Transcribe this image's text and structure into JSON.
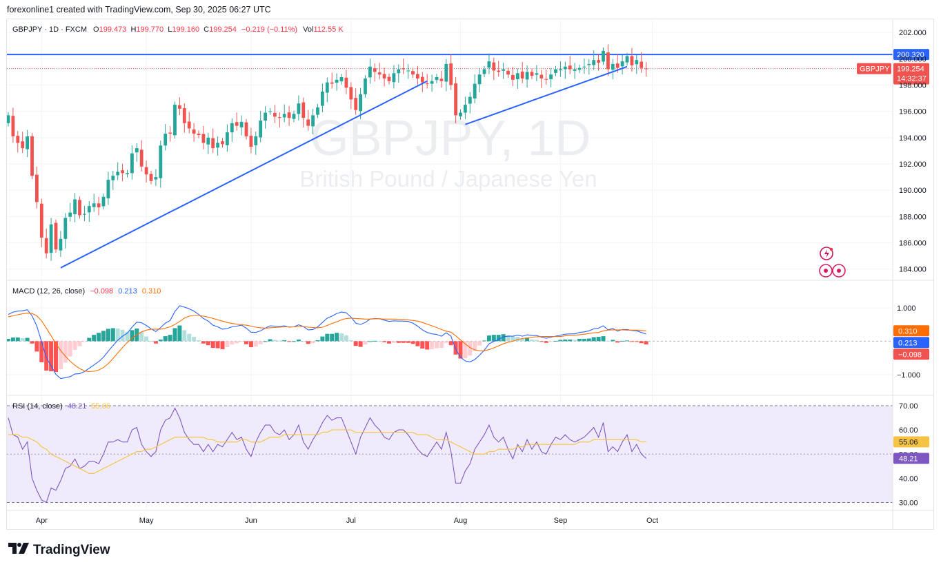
{
  "header": {
    "credit": "forexonline1 created with TradingView.com, Sep 30, 2025 06:27 UTC"
  },
  "symbol_bar": {
    "symbol": "GBPJPY · 1D · FXCM",
    "o_label": "O",
    "o_value": "199.473",
    "h_label": "H",
    "h_value": "199.770",
    "l_label": "L",
    "l_value": "199.160",
    "c_label": "C",
    "c_value": "199.254",
    "change": "−0.219 (−0.11%)",
    "vol_label": "Vol",
    "vol_value": "112.55 K"
  },
  "watermark": {
    "line1": "GBPJPY, 1D",
    "line2": "British Pound / Japanese Yen"
  },
  "price_labels": {
    "resistance": "200.320",
    "symbol_tag": "GBPJPY",
    "last_price": "199.254",
    "countdown": "14:32:37"
  },
  "macd_legend": {
    "title": "MACD (12, 26, close)",
    "hist": "−0.098",
    "macd": "0.213",
    "signal": "0.310"
  },
  "rsi_legend": {
    "title": "RSI (14, close)",
    "rsi": "48.21",
    "ma": "55.06"
  },
  "footer": {
    "brand": "TradingView"
  },
  "colors": {
    "up": "#26a69a",
    "down": "#ef5350",
    "trendline": "#2962ff",
    "macd_line": "#2962ff",
    "signal_line": "#ff6d00",
    "rsi_line": "#7e57c2",
    "rsi_ma": "#f5c242",
    "rsi_band": "#f0ebfa"
  },
  "chart_data": [
    {
      "type": "candlestick",
      "title": "GBPJPY, 1D",
      "x_labels": [
        "Apr",
        "May",
        "Jun",
        "Jul",
        "Aug",
        "Sep",
        "Oct"
      ],
      "y_ticks": [
        184,
        186,
        188,
        190,
        192,
        194,
        196,
        198,
        200,
        202
      ],
      "ylim": [
        183.2,
        203.0
      ],
      "grid": true,
      "start_date": "2025-03-21",
      "closes": [
        195.7,
        194.1,
        193.6,
        193.2,
        194.1,
        191.1,
        189.1,
        186.4,
        185.2,
        187.4,
        185.5,
        186.3,
        187.9,
        188.3,
        189.3,
        188.1,
        188.2,
        188.8,
        189.0,
        188.7,
        189.5,
        190.8,
        191.1,
        191.4,
        191.3,
        191.3,
        192.8,
        193.2,
        191.8,
        191.2,
        190.7,
        191.0,
        193.4,
        194.3,
        194.3,
        196.5,
        196.2,
        195.1,
        194.7,
        194.3,
        194.2,
        193.6,
        194.0,
        193.2,
        193.6,
        193.5,
        194.4,
        195.1,
        194.9,
        195.2,
        194.1,
        193.3,
        194.1,
        195.3,
        195.9,
        196.0,
        195.6,
        195.5,
        195.8,
        195.5,
        195.8,
        196.6,
        195.5,
        194.9,
        195.7,
        196.3,
        197.5,
        198.2,
        198.1,
        198.4,
        198.6,
        197.8,
        196.9,
        196.1,
        197.3,
        198.5,
        199.4,
        199.0,
        198.8,
        198.5,
        198.3,
        198.9,
        199.2,
        199.2,
        199.1,
        198.8,
        198.5,
        198.2,
        198.1,
        198.3,
        198.6,
        198.3,
        199.6,
        198.0,
        195.7,
        195.9,
        196.5,
        197.1,
        198.1,
        198.8,
        199.2,
        199.8,
        199.1,
        199.0,
        199.2,
        198.8,
        198.4,
        198.9,
        198.5,
        199.0,
        198.7,
        198.9,
        198.5,
        198.4,
        198.8,
        199.2,
        199.2,
        199.4,
        199.2,
        199.2,
        199.3,
        199.4,
        199.6,
        199.9,
        199.7,
        200.6,
        199.2,
        199.6,
        199.3,
        199.8,
        200.2,
        199.5,
        199.9,
        199.3,
        199.25
      ],
      "trendlines": [
        {
          "from": [
            "2025-04-07",
            184.1
          ],
          "to": [
            "2025-07-23",
            198.3
          ]
        },
        {
          "from": [
            "2025-08-04",
            195.0
          ],
          "to": [
            "2025-09-19",
            199.4
          ]
        }
      ],
      "horizontal_lines": [
        {
          "price": 200.32
        }
      ]
    },
    {
      "type": "line",
      "title": "MACD (12, 26, close)",
      "y_ticks": [
        1.0,
        -1.0
      ],
      "ylim": [
        -1.6,
        1.8
      ],
      "series": [
        {
          "name": "MACD",
          "values": [
            0.8,
            0.87,
            0.9,
            0.91,
            0.94,
            0.76,
            0.45,
            -0.02,
            -0.49,
            -0.74,
            -0.99,
            -1.12,
            -1.09,
            -1.06,
            -0.98,
            -0.97,
            -0.91,
            -0.81,
            -0.71,
            -0.61,
            -0.48,
            -0.3,
            -0.13,
            0.03,
            0.15,
            0.24,
            0.42,
            0.57,
            0.55,
            0.47,
            0.37,
            0.29,
            0.41,
            0.54,
            0.62,
            0.89,
            1.06,
            1.02,
            0.97,
            0.9,
            0.8,
            0.68,
            0.6,
            0.48,
            0.43,
            0.36,
            0.38,
            0.43,
            0.45,
            0.48,
            0.39,
            0.27,
            0.26,
            0.31,
            0.39,
            0.46,
            0.45,
            0.44,
            0.46,
            0.42,
            0.43,
            0.49,
            0.44,
            0.34,
            0.35,
            0.43,
            0.56,
            0.69,
            0.75,
            0.83,
            0.87,
            0.85,
            0.72,
            0.54,
            0.5,
            0.56,
            0.66,
            0.68,
            0.67,
            0.63,
            0.59,
            0.61,
            0.6,
            0.6,
            0.59,
            0.54,
            0.45,
            0.34,
            0.26,
            0.22,
            0.2,
            0.15,
            0.25,
            0.15,
            -0.24,
            -0.48,
            -0.59,
            -0.62,
            -0.55,
            -0.42,
            -0.27,
            -0.08,
            -0.01,
            0.05,
            0.13,
            0.15,
            0.15,
            0.18,
            0.15,
            0.19,
            0.17,
            0.17,
            0.12,
            0.09,
            0.12,
            0.15,
            0.18,
            0.21,
            0.22,
            0.22,
            0.26,
            0.28,
            0.31,
            0.37,
            0.39,
            0.46,
            0.34,
            0.38,
            0.3,
            0.35,
            0.35,
            0.32,
            0.31,
            0.26,
            0.213
          ]
        },
        {
          "name": "Signal",
          "values": [
            0.73,
            0.76,
            0.79,
            0.82,
            0.84,
            0.83,
            0.76,
            0.61,
            0.39,
            0.16,
            -0.07,
            -0.28,
            -0.45,
            -0.6,
            -0.72,
            -0.82,
            -0.89,
            -0.91,
            -0.9,
            -0.86,
            -0.79,
            -0.67,
            -0.52,
            -0.35,
            -0.19,
            -0.04,
            0.09,
            0.19,
            0.28,
            0.33,
            0.36,
            0.36,
            0.36,
            0.39,
            0.43,
            0.5,
            0.59,
            0.69,
            0.75,
            0.77,
            0.77,
            0.75,
            0.72,
            0.68,
            0.64,
            0.6,
            0.56,
            0.53,
            0.51,
            0.49,
            0.48,
            0.45,
            0.42,
            0.4,
            0.39,
            0.4,
            0.41,
            0.42,
            0.43,
            0.43,
            0.43,
            0.44,
            0.44,
            0.42,
            0.41,
            0.4,
            0.42,
            0.47,
            0.53,
            0.58,
            0.64,
            0.68,
            0.69,
            0.68,
            0.67,
            0.66,
            0.66,
            0.67,
            0.67,
            0.66,
            0.66,
            0.66,
            0.65,
            0.65,
            0.64,
            0.62,
            0.6,
            0.56,
            0.51,
            0.46,
            0.41,
            0.35,
            0.3,
            0.27,
            0.16,
            0.04,
            -0.08,
            -0.19,
            -0.26,
            -0.29,
            -0.29,
            -0.25,
            -0.2,
            -0.14,
            -0.08,
            -0.03,
            0.0,
            0.05,
            0.08,
            0.1,
            0.12,
            0.13,
            0.14,
            0.14,
            0.14,
            0.14,
            0.14,
            0.16,
            0.17,
            0.18,
            0.19,
            0.21,
            0.23,
            0.25,
            0.26,
            0.31,
            0.33,
            0.34,
            0.34,
            0.34,
            0.33,
            0.33,
            0.33,
            0.32,
            0.31
          ]
        }
      ],
      "histogram": [
        0.07,
        0.11,
        0.11,
        0.09,
        0.1,
        -0.07,
        -0.31,
        -0.63,
        -0.88,
        -0.9,
        -0.92,
        -0.84,
        -0.64,
        -0.46,
        -0.26,
        -0.15,
        -0.02,
        0.1,
        0.19,
        0.25,
        0.31,
        0.37,
        0.39,
        0.38,
        0.34,
        0.28,
        0.33,
        0.38,
        0.27,
        0.14,
        0.01,
        -0.07,
        0.05,
        0.15,
        0.19,
        0.39,
        0.47,
        0.33,
        0.22,
        0.13,
        0.03,
        -0.07,
        -0.12,
        -0.2,
        -0.21,
        -0.24,
        -0.18,
        -0.1,
        -0.06,
        -0.01,
        -0.09,
        -0.18,
        -0.16,
        -0.09,
        0.0,
        0.06,
        0.04,
        0.02,
        0.03,
        -0.01,
        0.0,
        0.05,
        0.0,
        -0.08,
        -0.06,
        0.03,
        0.14,
        0.22,
        0.22,
        0.25,
        0.23,
        0.17,
        0.03,
        -0.14,
        -0.17,
        -0.1,
        0.0,
        0.01,
        0.0,
        -0.03,
        -0.07,
        -0.05,
        -0.05,
        -0.05,
        -0.05,
        -0.08,
        -0.15,
        -0.22,
        -0.25,
        -0.24,
        -0.21,
        -0.2,
        -0.05,
        -0.12,
        -0.4,
        -0.52,
        -0.51,
        -0.43,
        -0.29,
        -0.13,
        0.02,
        0.17,
        0.19,
        0.19,
        0.21,
        0.18,
        0.15,
        0.13,
        0.07,
        0.09,
        0.05,
        0.04,
        -0.02,
        -0.05,
        -0.02,
        0.01,
        0.04,
        0.05,
        0.05,
        0.04,
        0.07,
        0.07,
        0.08,
        0.12,
        0.13,
        0.15,
        0.01,
        0.04,
        -0.04,
        0.01,
        0.02,
        -0.01,
        -0.02,
        -0.06,
        -0.098
      ]
    },
    {
      "type": "line",
      "title": "RSI (14, close)",
      "y_ticks": [
        70,
        60,
        50,
        40,
        30
      ],
      "ylim": [
        27,
        74
      ],
      "band": [
        30,
        70
      ],
      "middle": 50,
      "series": [
        {
          "name": "RSI",
          "values": [
            65,
            58,
            57,
            52,
            55,
            40,
            35,
            31,
            30,
            36,
            35,
            39,
            44,
            45,
            48,
            44,
            45,
            47,
            47,
            46,
            50,
            55,
            55,
            56,
            55,
            55,
            60,
            61,
            54,
            51,
            49,
            51,
            60,
            64,
            65,
            69,
            65,
            59,
            56,
            54,
            54,
            51,
            54,
            51,
            54,
            53,
            56,
            59,
            56,
            57,
            52,
            49,
            55,
            59,
            62,
            62,
            59,
            58,
            60,
            56,
            58,
            62,
            55,
            52,
            56,
            59,
            63,
            66,
            64,
            65,
            65,
            60,
            55,
            50,
            57,
            61,
            65,
            62,
            60,
            57,
            56,
            59,
            60,
            60,
            58,
            55,
            52,
            50,
            49,
            52,
            55,
            52,
            59,
            51,
            38,
            38,
            43,
            46,
            52,
            55,
            58,
            62,
            57,
            55,
            57,
            52,
            48,
            54,
            51,
            56,
            52,
            55,
            51,
            50,
            54,
            57,
            56,
            58,
            56,
            55,
            56,
            57,
            59,
            61,
            57,
            63,
            51,
            53,
            51,
            55,
            58,
            51,
            54,
            50,
            48.21
          ]
        },
        {
          "name": "RSI-based MA",
          "values": [
            58,
            58,
            58,
            57,
            57,
            56,
            55,
            53,
            52,
            50,
            49,
            48,
            47,
            46,
            45,
            44,
            43,
            42,
            42,
            43,
            44,
            45,
            46,
            47,
            48,
            49,
            50,
            51,
            51,
            52,
            52,
            53,
            54,
            55,
            56,
            57,
            57,
            57,
            57,
            57,
            57,
            57,
            56,
            56,
            55,
            55,
            55,
            55,
            55,
            56,
            56,
            55,
            55,
            55,
            56,
            57,
            57,
            57,
            58,
            58,
            58,
            58,
            58,
            58,
            58,
            58,
            59,
            59,
            60,
            60,
            60,
            60,
            60,
            59,
            59,
            59,
            59,
            59,
            59,
            59,
            59,
            59,
            59,
            59,
            59,
            59,
            58,
            58,
            58,
            57,
            56,
            56,
            56,
            55,
            54,
            53,
            52,
            51,
            50,
            50,
            50,
            51,
            51,
            52,
            52,
            52,
            52,
            53,
            53,
            54,
            54,
            54,
            54,
            54,
            54,
            54,
            54,
            54,
            54,
            54,
            55,
            55,
            55,
            56,
            56,
            56,
            56,
            56,
            56,
            56,
            56,
            56,
            56,
            55,
            55.06
          ]
        }
      ]
    }
  ]
}
